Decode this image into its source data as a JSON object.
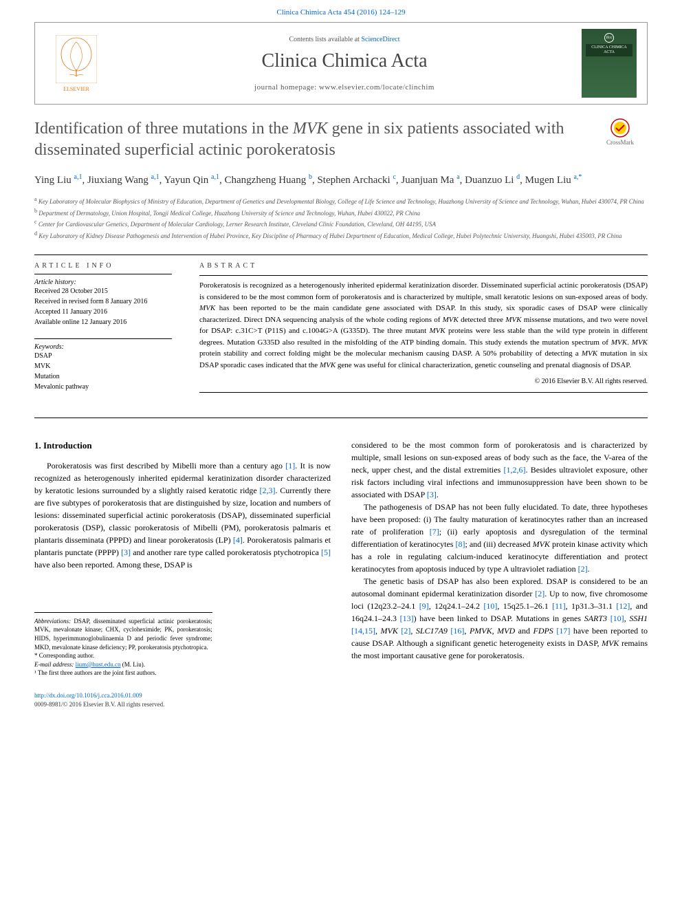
{
  "top_citation": "Clinica Chimica Acta 454 (2016) 124–129",
  "header": {
    "contents_prefix": "Contents lists available at ",
    "contents_link": "ScienceDirect",
    "journal": "Clinica Chimica Acta",
    "homepage_label": "journal homepage: ",
    "homepage_url": "www.elsevier.com/locate/clinchim",
    "publisher": "ELSEVIER",
    "cover_text": "CLINICA CHIMICA ACTA"
  },
  "crossmark": "CrossMark",
  "title_pre": "Identification of three mutations in the ",
  "title_gene": "MVK",
  "title_post": " gene in six patients associated with disseminated superficial actinic porokeratosis",
  "authors_html": "Ying Liu <sup>a,1</sup>, Jiuxiang Wang <sup>a,1</sup>, Yayun Qin <sup>a,1</sup>, Changzheng Huang <sup>b</sup>, Stephen Archacki <sup>c</sup>, Juanjuan Ma <sup>a</sup>, Duanzuo Li <sup>d</sup>, Mugen Liu <sup>a,*</sup>",
  "affiliations": [
    {
      "sup": "a",
      "text": "Key Laboratory of Molecular Biophysics of Ministry of Education, Department of Genetics and Developmental Biology, College of Life Science and Technology, Huazhong University of Science and Technology, Wuhan, Hubei 430074, PR China"
    },
    {
      "sup": "b",
      "text": "Department of Dermatology, Union Hospital, Tongji Medical College, Huazhong University of Science and Technology, Wuhan, Hubei 430022, PR China"
    },
    {
      "sup": "c",
      "text": "Center for Cardiovascular Genetics, Department of Molecular Cardiology, Lerner Research Institute, Cleveland Clinic Foundation, Cleveland, OH 44195, USA"
    },
    {
      "sup": "d",
      "text": "Key Laboratory of Kidney Disease Pathogenesis and Intervention of Hubei Province, Key Discipline of Pharmacy of Hubei Department of Education, Medical College, Hubei Polytechnic University, Huangshi, Hubei 435003, PR China"
    }
  ],
  "article_info": {
    "heading": "article info",
    "history_label": "Article history:",
    "history": [
      "Received 28 October 2015",
      "Received in revised form 8 January 2016",
      "Accepted 11 January 2016",
      "Available online 12 January 2016"
    ],
    "keywords_label": "Keywords:",
    "keywords": [
      "DSAP",
      "MVK",
      "Mutation",
      "Mevalonic pathway"
    ]
  },
  "abstract": {
    "heading": "abstract",
    "text": "Porokeratosis is recognized as a heterogenously inherited epidermal keratinization disorder. Disseminated superficial actinic porokeratosis (DSAP) is considered to be the most common form of porokeratosis and is characterized by multiple, small keratotic lesions on sun-exposed areas of body. MVK has been reported to be the main candidate gene associated with DSAP. In this study, six sporadic cases of DSAP were clinically characterized. Direct DNA sequencing analysis of the whole coding regions of MVK detected three MVK missense mutations, and two were novel for DSAP: c.31C>T (P11S) and c.1004G>A (G335D). The three mutant MVK proteins were less stable than the wild type protein in different degrees. Mutation G335D also resulted in the misfolding of the ATP binding domain. This study extends the mutation spectrum of MVK. MVK protein stability and correct folding might be the molecular mechanism causing DASP. A 50% probability of detecting a MVK mutation in six DSAP sporadic cases indicated that the MVK gene was useful for clinical characterization, genetic counseling and prenatal diagnosis of DSAP.",
    "copyright": "© 2016 Elsevier B.V. All rights reserved."
  },
  "intro": {
    "heading": "1. Introduction",
    "p1": "Porokeratosis was first described by Mibelli more than a century ago [1]. It is now recognized as heterogenously inherited epidermal keratinization disorder characterized by keratotic lesions surrounded by a slightly raised keratotic ridge [2,3]. Currently there are five subtypes of porokeratosis that are distinguished by size, location and numbers of lesions: disseminated superficial actinic porokeratosis (DSAP), disseminated superficial porokeratosis (DSP), classic porokeratosis of Mibelli (PM), porokeratosis palmaris et plantaris disseminata (PPPD) and linear porokeratosis (LP) [4]. Porokeratosis palmaris et plantaris punctate (PPPP) [3] and another rare type called porokeratosis ptychotropica [5] have also been reported. Among these, DSAP is",
    "p2": "considered to be the most common form of porokeratosis and is characterized by multiple, small lesions on sun-exposed areas of body such as the face, the V-area of the neck, upper chest, and the distal extremities [1,2,6]. Besides ultraviolet exposure, other risk factors including viral infections and immunosuppression have been shown to be associated with DSAP [3].",
    "p3": "The pathogenesis of DSAP has not been fully elucidated. To date, three hypotheses have been proposed: (i) The faulty maturation of keratinocytes rather than an increased rate of proliferation [7]; (ii) early apoptosis and dysregulation of the terminal differentiation of keratinocytes [8]; and (iii) decreased MVK protein kinase activity which has a role in regulating calcium-induced keratinocyte differentiation and protect keratinocytes from apoptosis induced by type A ultraviolet radiation [2].",
    "p4": "The genetic basis of DSAP has also been explored. DSAP is considered to be an autosomal dominant epidermal keratinization disorder [2]. Up to now, five chromosome loci (12q23.2–24.1 [9], 12q24.1–24.2 [10], 15q25.1–26.1 [11], 1p31.3–31.1 [12], and 16q24.1–24.3 [13]) have been linked to DSAP. Mutations in genes SART3 [10], SSH1 [14,15], MVK [2], SLC17A9 [16], PMVK, MVD and FDPS [17] have been reported to cause DSAP. Although a significant genetic heterogeneity exists in DASP, MVK remains the most important causative gene for porokeratosis."
  },
  "footnotes": {
    "abbrev_label": "Abbreviations:",
    "abbrev_text": " DSAP, disseminated superficial actinic porokeratosis; MVK, mevalonate kinase; CHX, cycloheximide; PK, porokeratosis; HIDS, hyperimmunoglobulinaemia D and periodic fever syndrome; MKD, mevalonate kinase deficiency; PP, porokeratosis ptychotropica.",
    "corr_label": "* Corresponding author.",
    "email_label": "E-mail address: ",
    "email": "lium@hust.edu.cn",
    "email_who": " (M. Liu).",
    "joint": "¹ The first three authors are the joint first authors."
  },
  "footer": {
    "doi": "http://dx.doi.org/10.1016/j.cca.2016.01.009",
    "issn": "0009-8981/© 2016 Elsevier B.V. All rights reserved."
  },
  "colors": {
    "link": "#0066cc",
    "elsevier_orange": "#e67817",
    "cover_green": "#2b5434",
    "title_grey": "#555555"
  }
}
